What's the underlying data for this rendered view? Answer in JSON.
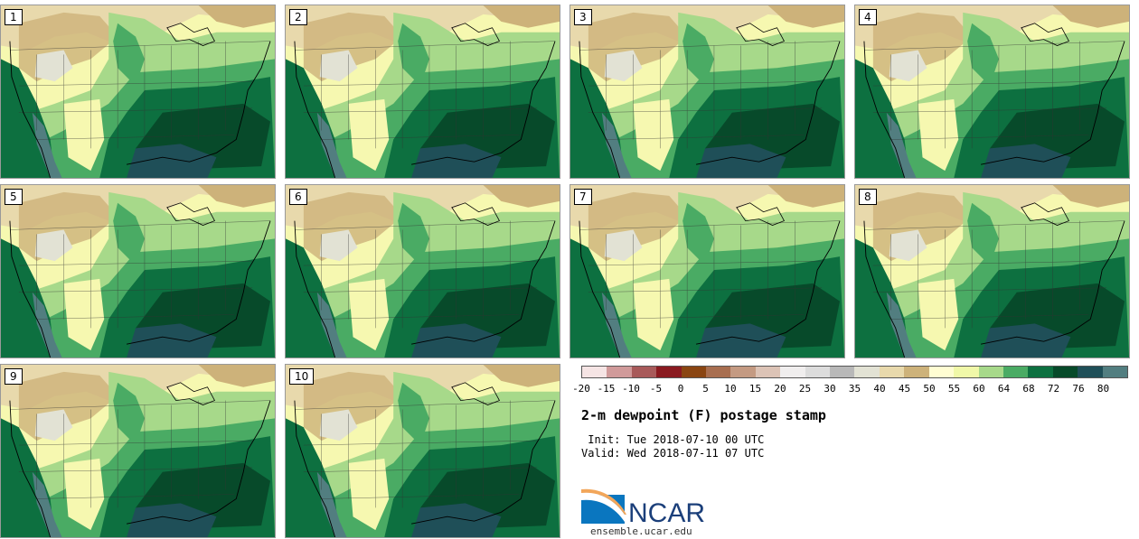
{
  "panels": [
    "1",
    "2",
    "3",
    "4",
    "5",
    "6",
    "7",
    "8",
    "9",
    "10"
  ],
  "colorbar": {
    "colors": [
      "#f5e4e4",
      "#d09a9a",
      "#a85a5a",
      "#8a1a20",
      "#8a4512",
      "#a86e50",
      "#c49a82",
      "#dcc3b6",
      "#f0eeee",
      "#dcdcdc",
      "#b8b8b8",
      "#e2e2d4",
      "#e8d9ac",
      "#cdb27a",
      "#fffdd2",
      "#f0f8a8",
      "#a7d98a",
      "#4aab64",
      "#0d7040",
      "#074a2a",
      "#1f4f58",
      "#527e80"
    ],
    "tick_labels": [
      "-20",
      "-15",
      "-10",
      "-5",
      "0",
      "5",
      "10",
      "15",
      "20",
      "25",
      "30",
      "35",
      "40",
      "45",
      "50",
      "55",
      "60",
      "64",
      "68",
      "72",
      "76",
      "80"
    ]
  },
  "title": "2-m dewpoint (F) postage stamp",
  "init": " Init: Tue 2018-07-10 00 UTC",
  "valid": "Valid: Wed 2018-07-11 07 UTC",
  "logo": {
    "text": "NCAR",
    "url": "ensemble.ucar.edu"
  }
}
